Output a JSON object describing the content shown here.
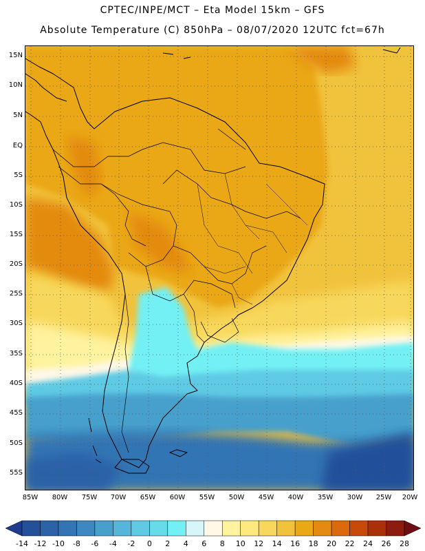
{
  "title_line1": "CPTEC/INPE/MCT –  Eta Model 15km – GFS",
  "title_line2": "Absolute Temperature (C) 850hPa – 08/07/2020 12UTC fct=67h",
  "lat_labels": [
    "15N",
    "10N",
    "5N",
    "EQ",
    "5S",
    "10S",
    "15S",
    "20S",
    "25S",
    "30S",
    "35S",
    "40S",
    "45S",
    "50S",
    "55S"
  ],
  "lon_labels": [
    "85W",
    "80W",
    "75W",
    "70W",
    "65W",
    "60W",
    "55W",
    "50W",
    "45W",
    "40W",
    "35W",
    "30W",
    "25W",
    "20W"
  ],
  "colorbar": {
    "labels": [
      "-14",
      "-12",
      "-10",
      "-8",
      "-6",
      "-4",
      "-2",
      "0",
      "2",
      "4",
      "6",
      "8",
      "10",
      "12",
      "14",
      "16",
      "18",
      "20",
      "22",
      "24",
      "26",
      "28"
    ],
    "colors": [
      "#1f3c8c",
      "#24509a",
      "#2c62a8",
      "#3374b4",
      "#3d88c0",
      "#47a0cc",
      "#55b6da",
      "#5fcae4",
      "#66dcea",
      "#72f0f4",
      "#d6f6fa",
      "#fff8e6",
      "#fff3a0",
      "#fde97e",
      "#f8d85c",
      "#f1c23c",
      "#eaa716",
      "#e48a10",
      "#dc6a0c",
      "#c84a0a",
      "#aa300a",
      "#8c1c10",
      "#6e0e14"
    ]
  }
}
